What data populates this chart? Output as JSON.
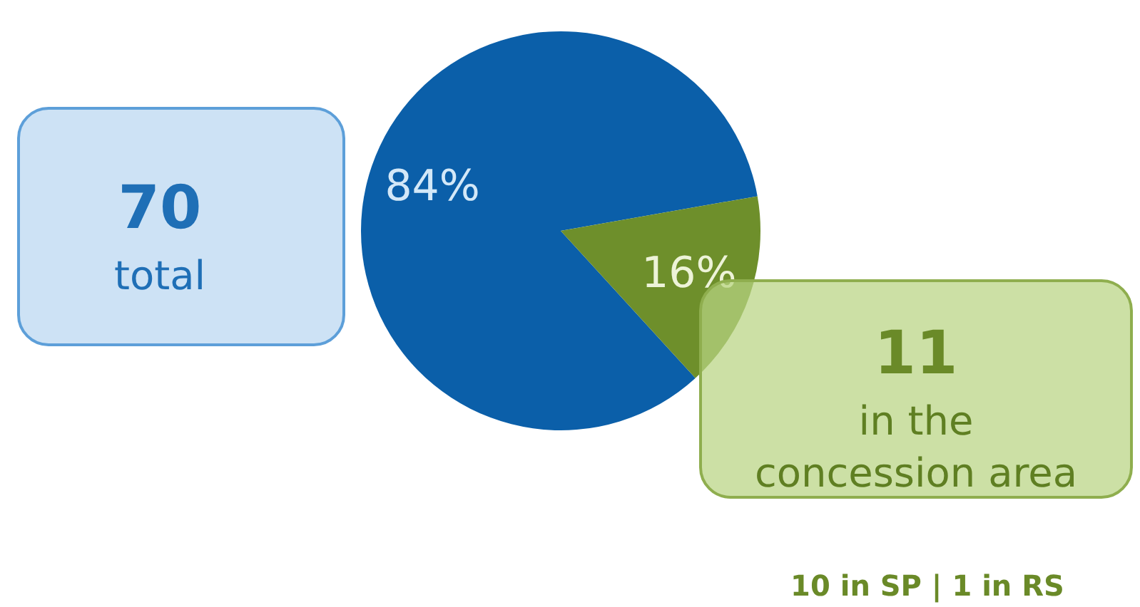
{
  "chart_data": {
    "type": "pie",
    "categories": [
      null,
      null
    ],
    "values": [
      84,
      16
    ],
    "colors": [
      "#0b5fa9",
      "#6e8f2b"
    ],
    "value_labels": [
      "84%",
      "16%"
    ],
    "annotations": [
      "70",
      "total",
      "11",
      "in the concession area",
      "10 in SP | 1 in RS"
    ]
  }
}
